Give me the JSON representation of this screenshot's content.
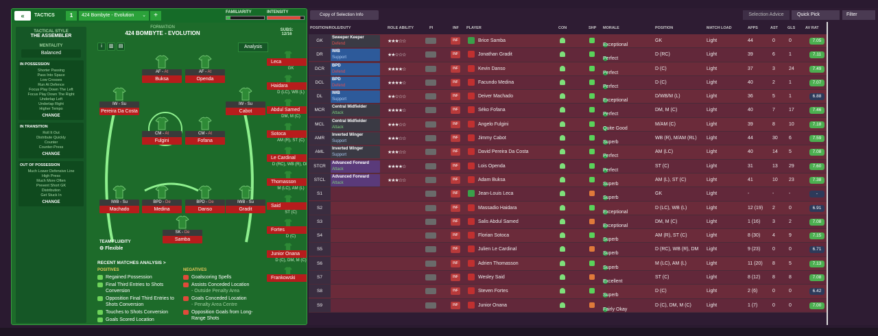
{
  "tactics": {
    "back_label": "«",
    "label": "TACTICS",
    "slot_number": "1",
    "selected": "424 Bombyte - Evolution",
    "add_label": "+",
    "familiarity_label": "FAMILIARITY",
    "intensity_label": "INTENSITY",
    "familiarity_level": 0.1,
    "intensity_level": 0.9
  },
  "side": {
    "style_head": "TACTICAL STYLE",
    "style_value": "THE ASSEMBLER",
    "mentality_head": "MENTALITY",
    "mentality_value": "Balanced",
    "in_possession_head": "IN POSSESSION",
    "in_possession_items": [
      "Shorter Passing",
      "Pass Into Space",
      "Low Crosses",
      "Run At Defence",
      "Focus Play Down The Left",
      "Focus Play Down The Right",
      "Underlap Left",
      "Underlap Right",
      "Higher Tempo"
    ],
    "transition_head": "IN TRANSITION",
    "transition_items": [
      "Roll It Out",
      "Distribute Quickly",
      "Counter",
      "Counter-Press"
    ],
    "out_head": "OUT OF POSSESSION",
    "out_items": [
      "Much Lower Defensive Line",
      "High Press",
      "Much More Often",
      "Prevent Short GK",
      "Distribution",
      "Get Stuck In"
    ],
    "change_label": "CHANGE"
  },
  "pitch": {
    "formation_label": "FORMATION",
    "formation_name": "424 BOMBYTE - EVOLUTION",
    "subs_label": "SUBS:",
    "subs_value": "12/16",
    "analysis_label": "Analysis",
    "players": [
      {
        "role": "AF - ",
        "duty": "At",
        "name": "Buksa",
        "blue": false
      },
      {
        "role": "AF - ",
        "duty": "At",
        "name": "Openda",
        "blue": false
      },
      {
        "role": "IW - Su",
        "duty": "",
        "name": "Pereira Da Costa",
        "blue": false
      },
      {
        "role": "IW - Su",
        "duty": "",
        "name": "Cabot",
        "blue": false
      },
      {
        "role": "CM - ",
        "duty": "At",
        "name": "Fulgini",
        "blue": false
      },
      {
        "role": "CM - ",
        "duty": "At",
        "name": "Fofana",
        "blue": false
      },
      {
        "role": "IWB - Su",
        "duty": "",
        "name": "Machado",
        "blue": false
      },
      {
        "role": "BPD - ",
        "duty": "De",
        "name": "Medina",
        "blue": false
      },
      {
        "role": "BPD - ",
        "duty": "De",
        "name": "Danso",
        "blue": false
      },
      {
        "role": "IWB - Su",
        "duty": "",
        "name": "Gradit",
        "blue": false
      },
      {
        "role": "SK - ",
        "duty": "De",
        "name": "Samba",
        "blue": false
      }
    ],
    "subs": [
      {
        "name": "Leca",
        "pos": "GK"
      },
      {
        "name": "Haidara",
        "pos": "D (LC), WB (L)"
      },
      {
        "name": "Abdul Samed",
        "pos": "DM, M (C)"
      },
      {
        "name": "Sotoca",
        "pos": "AM (R), ST (C)"
      },
      {
        "name": "Le Cardinal",
        "pos": "D (RC), WB (R), DM"
      },
      {
        "name": "Thomasson",
        "pos": "M (LC), AM (L)"
      },
      {
        "name": "Said",
        "pos": "ST (C)"
      },
      {
        "name": "Fortes",
        "pos": "D (C)"
      },
      {
        "name": "Junior Onana",
        "pos": "D (C), DM, M (C)"
      },
      {
        "name": "Frankowski",
        "pos": ""
      }
    ],
    "fluidity_label": "TEAM FLUIDITY",
    "fluidity_value": "Flexible"
  },
  "recent": {
    "title": "RECENT MATCHES ANALYSIS >",
    "positives_label": "POSITIVES",
    "negatives_label": "NEGATIVES",
    "positives": [
      "Regained Possession",
      "Final Third Entries to Shots Conversion",
      "Opposition Final Third Entries to Shots Conversion",
      "Touches to Shots Conversion",
      "Goals Scored Location"
    ],
    "negatives": [
      {
        "t": "Goalscoring Spells",
        "s": ""
      },
      {
        "t": "Assists Conceded Location",
        "s": "- Outside Penalty Area"
      },
      {
        "t": "Goals Conceded Location",
        "s": "- Penalty Area Centre"
      },
      {
        "t": "Opposition Goals from Long-Range Shots",
        "s": ""
      }
    ]
  },
  "toolbar": {
    "copy_label": "Copy of Selection Info",
    "advice_label": "Selection Advice",
    "quick_pick_label": "Quick Pick",
    "filter_label": "Filter"
  },
  "headers": [
    "POSITION/ROLE/DUTY",
    "ROLE ABILITY",
    "PI",
    "INF",
    "PLAYER",
    "CON",
    "SHP",
    "MORALE",
    "POSITION",
    "MATCH LOAD",
    "APPS",
    "AST",
    "GLS",
    "AV RAT"
  ],
  "colors": {
    "defend": "#2d5a9a",
    "support": "#2d5a9a",
    "mid": "#3a3a44",
    "attack": "#5a3a7a",
    "high": "#4caf50",
    "low": "#2d3a5a"
  },
  "rows": [
    {
      "code": "GK",
      "role": "Sweeper Keeper",
      "duty": "Defend",
      "dutyc": "#e05050",
      "bg": "#3a3a44",
      "stars": "★★★☆☆",
      "player": "Brice Samba",
      "morale": "Exceptional",
      "position": "GK",
      "load": "Light",
      "apps": "44",
      "ast": "0",
      "gls": "0",
      "rat": "7.05",
      "high": true
    },
    {
      "code": "DR",
      "role": "IWB",
      "duty": "Support",
      "dutyc": "#a8c8f0",
      "bg": "#2d5a9a",
      "stars": "★★☆☆☆",
      "player": "Jonathan Gradit",
      "morale": "Perfect",
      "position": "D (RC)",
      "load": "Light",
      "apps": "39",
      "ast": "6",
      "gls": "1",
      "rat": "7.11",
      "high": true
    },
    {
      "code": "DCR",
      "role": "BPD",
      "duty": "Defend",
      "dutyc": "#e05050",
      "bg": "#2d5a9a",
      "stars": "★★★★☆",
      "player": "Kevin Danso",
      "morale": "Perfect",
      "position": "D (C)",
      "load": "Light",
      "apps": "37",
      "ast": "3",
      "gls": "24",
      "rat": "7.49",
      "high": true
    },
    {
      "code": "DCL",
      "role": "BPD",
      "duty": "Defend",
      "dutyc": "#e05050",
      "bg": "#2d5a9a",
      "stars": "★★★★☆",
      "player": "Facundo Medina",
      "morale": "Perfect",
      "position": "D (C)",
      "load": "Light",
      "apps": "40",
      "ast": "2",
      "gls": "1",
      "rat": "7.07",
      "high": true
    },
    {
      "code": "DL",
      "role": "IWB",
      "duty": "Support",
      "dutyc": "#a8c8f0",
      "bg": "#2d5a9a",
      "stars": "★★☆☆☆",
      "player": "Deiver Machado",
      "morale": "Exceptional",
      "position": "D/WB/M (L)",
      "load": "Light",
      "apps": "36",
      "ast": "5",
      "gls": "1",
      "rat": "6.88",
      "high": false
    },
    {
      "code": "MCR",
      "role": "Central Midfielder",
      "duty": "Attack",
      "dutyc": "#7ed07e",
      "bg": "#3a3a44",
      "stars": "★★★★☆",
      "player": "Séko Fofana",
      "morale": "Perfect",
      "position": "DM, M (C)",
      "load": "Light",
      "apps": "40",
      "ast": "7",
      "gls": "17",
      "rat": "7.46",
      "high": true
    },
    {
      "code": "MCL",
      "role": "Central Midfielder",
      "duty": "Attack",
      "dutyc": "#7ed07e",
      "bg": "#3a3a44",
      "stars": "★★★☆☆",
      "player": "Angelo Fulgini",
      "morale": "Quite Good",
      "position": "M/AM (C)",
      "load": "Light",
      "apps": "39",
      "ast": "8",
      "gls": "10",
      "rat": "7.18",
      "high": true
    },
    {
      "code": "AMR",
      "role": "Inverted Winger",
      "duty": "Support",
      "dutyc": "#a8c8f0",
      "bg": "#3a3a44",
      "stars": "★★★☆☆",
      "player": "Jimmy Cabot",
      "morale": "Superb",
      "position": "WB (R), M/AM (RL)",
      "load": "Light",
      "apps": "44",
      "ast": "30",
      "gls": "6",
      "rat": "7.59",
      "high": true
    },
    {
      "code": "AML",
      "role": "Inverted Winger",
      "duty": "Support",
      "dutyc": "#a8c8f0",
      "bg": "#3a3a44",
      "stars": "★★★☆☆",
      "player": "David Pereira Da Costa",
      "morale": "Perfect",
      "position": "AM (LC)",
      "load": "Light",
      "apps": "40",
      "ast": "14",
      "gls": "5",
      "rat": "7.08",
      "high": true
    },
    {
      "code": "STCR",
      "role": "Advanced Forward",
      "duty": "Attack",
      "dutyc": "#7ed07e",
      "bg": "#5a3a7a",
      "stars": "★★★★☆",
      "player": "Lois Openda",
      "morale": "Perfect",
      "position": "ST (C)",
      "load": "Light",
      "apps": "31",
      "ast": "13",
      "gls": "29",
      "rat": "7.60",
      "high": true
    },
    {
      "code": "STCL",
      "role": "Advanced Forward",
      "duty": "Attack",
      "dutyc": "#7ed07e",
      "bg": "#5a3a7a",
      "stars": "★★★☆☆",
      "player": "Adam Buksa",
      "morale": "Superb",
      "position": "AM (L), ST (C)",
      "load": "Light",
      "apps": "41",
      "ast": "10",
      "gls": "23",
      "rat": "7.38",
      "high": true
    },
    {
      "code": "S1",
      "role": "",
      "duty": "",
      "dutyc": "",
      "bg": "",
      "stars": "",
      "player": "Jean-Louis Leca",
      "morale": "Superb",
      "position": "GK",
      "load": "Light",
      "apps": "-",
      "ast": "-",
      "gls": "-",
      "rat": "-",
      "high": false
    },
    {
      "code": "S2",
      "role": "",
      "duty": "",
      "dutyc": "",
      "bg": "",
      "stars": "",
      "player": "Massadio Haidara",
      "morale": "Exceptional",
      "position": "D (LC), WB (L)",
      "load": "Light",
      "apps": "12 (19)",
      "ast": "2",
      "gls": "0",
      "rat": "6.91",
      "high": false
    },
    {
      "code": "S3",
      "role": "",
      "duty": "",
      "dutyc": "",
      "bg": "",
      "stars": "",
      "player": "Salis Abdul Samed",
      "morale": "Exceptional",
      "position": "DM, M (C)",
      "load": "Light",
      "apps": "1 (16)",
      "ast": "3",
      "gls": "2",
      "rat": "7.08",
      "high": true
    },
    {
      "code": "S4",
      "role": "",
      "duty": "",
      "dutyc": "",
      "bg": "",
      "stars": "",
      "player": "Florian Sotoca",
      "morale": "Superb",
      "position": "AM (R), ST (C)",
      "load": "Light",
      "apps": "8 (30)",
      "ast": "4",
      "gls": "9",
      "rat": "7.15",
      "high": true
    },
    {
      "code": "S5",
      "role": "",
      "duty": "",
      "dutyc": "",
      "bg": "",
      "stars": "",
      "player": "Julien Le Cardinal",
      "morale": "Superb",
      "position": "D (RC), WB (R), DM",
      "load": "Light",
      "apps": "9 (23)",
      "ast": "0",
      "gls": "0",
      "rat": "6.71",
      "high": false
    },
    {
      "code": "S6",
      "role": "",
      "duty": "",
      "dutyc": "",
      "bg": "",
      "stars": "",
      "player": "Adrien Thomasson",
      "morale": "Superb",
      "position": "M (LC), AM (L)",
      "load": "Light",
      "apps": "11 (20)",
      "ast": "8",
      "gls": "5",
      "rat": "7.13",
      "high": true
    },
    {
      "code": "S7",
      "role": "",
      "duty": "",
      "dutyc": "",
      "bg": "",
      "stars": "",
      "player": "Wesley Said",
      "morale": "Excellent",
      "position": "ST (C)",
      "load": "Light",
      "apps": "8 (12)",
      "ast": "8",
      "gls": "8",
      "rat": "7.08",
      "high": true
    },
    {
      "code": "S8",
      "role": "",
      "duty": "",
      "dutyc": "",
      "bg": "",
      "stars": "",
      "player": "Steven Fortes",
      "morale": "Superb",
      "position": "D (C)",
      "load": "Light",
      "apps": "2 (6)",
      "ast": "0",
      "gls": "0",
      "rat": "6.42",
      "high": false
    },
    {
      "code": "S9",
      "role": "",
      "duty": "",
      "dutyc": "",
      "bg": "",
      "stars": "",
      "player": "Junior Onana",
      "morale": "Fairly Okay",
      "position": "D (C), DM, M (C)",
      "load": "Light",
      "apps": "1 (7)",
      "ast": "0",
      "gls": "0",
      "rat": "7.00",
      "high": true
    }
  ]
}
